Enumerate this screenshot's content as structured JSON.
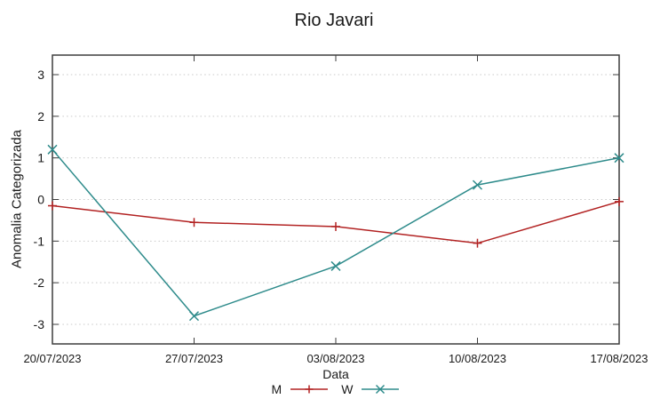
{
  "title": "Rio Javari",
  "colors": {
    "series_m": "#b22222",
    "series_w": "#2e8b8b",
    "grid": "#c9c9c9",
    "frame": "#3d3d3d",
    "text": "#1a1a1a"
  },
  "chart_data": {
    "type": "line",
    "title": "Rio Javari",
    "xlabel": "Data",
    "ylabel": "Anomalia Categorizada",
    "categories": [
      "20/07/2023",
      "27/07/2023",
      "03/08/2023",
      "10/08/2023",
      "17/08/2023"
    ],
    "series": [
      {
        "name": "M",
        "marker": "plus",
        "color": "#b22222",
        "values": [
          -0.15,
          -0.55,
          -0.65,
          -1.05,
          -0.05
        ]
      },
      {
        "name": "W",
        "marker": "cross",
        "color": "#2e8b8b",
        "values": [
          1.2,
          -2.8,
          -1.6,
          0.35,
          1.0
        ]
      }
    ],
    "y_ticks": [
      3,
      2,
      1,
      0,
      -1,
      -2,
      -3
    ],
    "ylim": [
      -3.47,
      3.47
    ],
    "grid": true,
    "grid_style": "dotted",
    "legend_position": "bottom-center"
  }
}
